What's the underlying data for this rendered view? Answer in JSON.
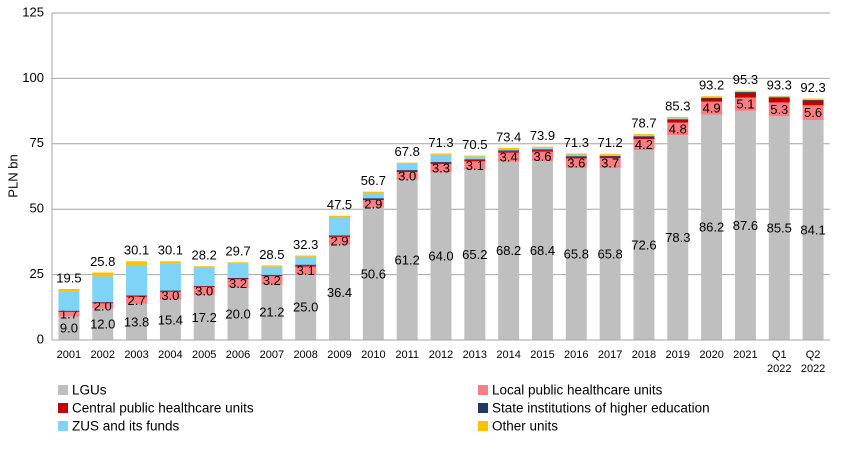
{
  "chart_data": {
    "type": "stacked_bar",
    "y_label": "PLN bn",
    "categories": [
      "2001",
      "2002",
      "2003",
      "2004",
      "2005",
      "2006",
      "2007",
      "2008",
      "2009",
      "2010",
      "2011",
      "2012",
      "2013",
      "2014",
      "2015",
      "2016",
      "2017",
      "2018",
      "2019",
      "2020",
      "2021",
      "Q1 2022",
      "Q2 2022"
    ],
    "ylim": [
      0,
      125
    ],
    "yticks": [
      0,
      25,
      50,
      75,
      100,
      125
    ],
    "grid": true,
    "series": [
      {
        "name": "LGUs",
        "color": "#bfbfbf",
        "values": [
          9.0,
          12.0,
          13.8,
          15.4,
          17.2,
          20.0,
          21.2,
          25.0,
          36.4,
          50.6,
          61.2,
          64.0,
          65.2,
          68.2,
          68.4,
          65.8,
          65.8,
          72.6,
          78.3,
          86.2,
          87.6,
          85.5,
          84.1
        ],
        "value_labels": [
          "9.0",
          "12.0",
          "13.8",
          "15.4",
          "17.2",
          "20.0",
          "21.2",
          "25.0",
          "36.4",
          "50.6",
          "61.2",
          "64.0",
          "65.2",
          "68.2",
          "68.4",
          "65.8",
          "65.8",
          "72.6",
          "78.3",
          "86.2",
          "87.6",
          "85.5",
          "84.1"
        ]
      },
      {
        "name": "Local public healthcare units",
        "color": "#ff7c80",
        "values": [
          1.7,
          2.0,
          2.7,
          3.0,
          3.0,
          3.2,
          3.2,
          3.1,
          2.9,
          2.9,
          3.0,
          3.3,
          3.1,
          3.4,
          3.6,
          3.6,
          3.7,
          4.2,
          4.8,
          4.9,
          5.1,
          5.3,
          5.6
        ],
        "value_labels": [
          "1.7",
          "2.0",
          "2.7",
          "3.0",
          "3.0",
          "3.2",
          "3.2",
          "3.1",
          "2.9",
          "2.9",
          "3.0",
          "3.3",
          "3.1",
          "3.4",
          "3.6",
          "3.6",
          "3.7",
          "4.2",
          "4.8",
          "4.9",
          "5.1",
          "5.3",
          "5.6"
        ]
      },
      {
        "name": "Central public healthcare units",
        "color": "#c00000",
        "values": [
          0.3,
          0.3,
          0.3,
          0.3,
          0.3,
          0.3,
          0.3,
          0.4,
          0.4,
          0.4,
          0.5,
          0.5,
          0.5,
          0.6,
          0.6,
          0.6,
          0.6,
          0.8,
          1.0,
          1.2,
          1.8,
          1.7,
          1.8
        ]
      },
      {
        "name": "State institutions of higher education",
        "color": "#1f3864",
        "values": [
          0.2,
          0.2,
          0.2,
          0.2,
          0.2,
          0.2,
          0.2,
          0.3,
          0.3,
          0.3,
          0.3,
          0.3,
          0.3,
          0.3,
          0.3,
          0.3,
          0.3,
          0.3,
          0.3,
          0.3,
          0.3,
          0.3,
          0.3
        ]
      },
      {
        "name": "ZUS and its funds",
        "color": "#7fd3f7",
        "values": [
          7.5,
          9.8,
          11.3,
          10.2,
          7.0,
          5.5,
          3.1,
          3.0,
          7.0,
          2.0,
          2.3,
          2.7,
          1.0,
          0.5,
          0.6,
          0.6,
          0.4,
          0.4,
          0.4,
          0.3,
          0.3,
          0.3,
          0.3
        ]
      },
      {
        "name": "Other units",
        "color": "#ffc000",
        "values": [
          0.8,
          1.5,
          1.8,
          1.0,
          0.5,
          0.5,
          0.5,
          0.5,
          0.5,
          0.5,
          0.5,
          0.5,
          0.4,
          0.4,
          0.4,
          0.4,
          0.4,
          0.4,
          0.5,
          0.3,
          0.2,
          0.2,
          0.2
        ]
      }
    ],
    "totals": {
      "values": [
        19.5,
        25.8,
        30.1,
        30.1,
        28.2,
        29.7,
        28.5,
        32.3,
        47.5,
        56.7,
        67.8,
        71.3,
        70.5,
        73.4,
        73.9,
        71.3,
        71.2,
        78.7,
        85.3,
        93.2,
        95.3,
        93.3,
        92.3
      ]
    }
  }
}
